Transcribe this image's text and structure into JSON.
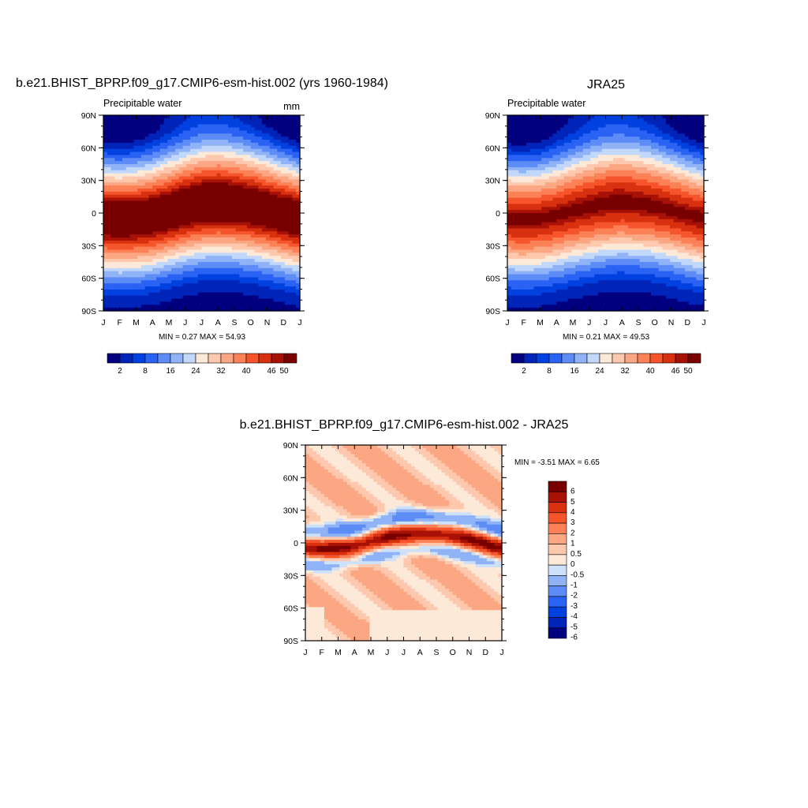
{
  "palette": [
    "#03007f",
    "#0024b8",
    "#0041e0",
    "#2a63f3",
    "#5d8cf6",
    "#90b3f7",
    "#c2d8fa",
    "#fde9d8",
    "#fdc8ad",
    "#fca783",
    "#fc8157",
    "#f6552c",
    "#d8310f",
    "#a81206",
    "#780000"
  ],
  "diff_palette": [
    "#03007f",
    "#0024b8",
    "#0041e0",
    "#2a63f3",
    "#5d8cf6",
    "#90b3f7",
    "#cde1fa",
    "#fde9d8",
    "#fdc8ad",
    "#fca783",
    "#fc8157",
    "#f6552c",
    "#d8310f",
    "#a81206",
    "#780000"
  ],
  "months": [
    "J",
    "F",
    "M",
    "A",
    "M",
    "J",
    "J",
    "A",
    "S",
    "O",
    "N",
    "D",
    "J"
  ],
  "lat_ticks": [
    "90N",
    "60N",
    "30N",
    "0",
    "30S",
    "60S",
    "90S"
  ],
  "cb_labels": [
    "2",
    "8",
    "16",
    "24",
    "32",
    "40",
    "46",
    "50"
  ],
  "diff_cb_labels": [
    "6",
    "5",
    "4",
    "3",
    "2",
    "1",
    "0.5",
    "0",
    "-0.5",
    "-1",
    "-2",
    "-3",
    "-4",
    "-5",
    "-6"
  ],
  "panel_left": {
    "title": "b.e21.BHIST_BPRP.f09_g17.CMIP6-esm-hist.002 (yrs 1960-1984)",
    "subtitle": "Precipitable water",
    "units": "mm",
    "minmax": "MIN =   0.27 MAX =  54.93"
  },
  "panel_right": {
    "title": "JRA25",
    "subtitle": "Precipitable water",
    "units": "",
    "minmax": "MIN =   0.21 MAX =  49.53"
  },
  "panel_diff": {
    "title": "b.e21.BHIST_BPRP.f09_g17.CMIP6-esm-hist.002 - JRA25",
    "minmax": "MIN =  -3.51 MAX =   6.65"
  },
  "chart_data": [
    {
      "type": "heatmap",
      "title": "b.e21.BHIST_BPRP.f09_g17.CMIP6-esm-hist.002 (yrs 1960-1984)",
      "variable": "Precipitable water",
      "units": "mm",
      "x": [
        "J",
        "F",
        "M",
        "A",
        "M",
        "J",
        "J",
        "A",
        "S",
        "O",
        "N",
        "D",
        "J"
      ],
      "y_range": [
        "90S",
        "90N"
      ],
      "min": 0.27,
      "max": 54.93,
      "contour_levels": [
        2,
        5,
        8,
        12,
        16,
        20,
        24,
        28,
        32,
        36,
        40,
        43,
        46,
        48,
        50
      ],
      "peak_latitude_by_month": [
        -5,
        -6,
        -5,
        -3,
        1,
        5,
        8,
        9,
        8,
        6,
        3,
        -1,
        -5
      ],
      "peak_value_mm": 54.93
    },
    {
      "type": "heatmap",
      "title": "JRA25",
      "variable": "Precipitable water",
      "x": [
        "J",
        "F",
        "M",
        "A",
        "M",
        "J",
        "J",
        "A",
        "S",
        "O",
        "N",
        "D",
        "J"
      ],
      "y_range": [
        "90S",
        "90N"
      ],
      "min": 0.21,
      "max": 49.53,
      "contour_levels": [
        2,
        5,
        8,
        12,
        16,
        20,
        24,
        28,
        32,
        36,
        40,
        43,
        46,
        48,
        50
      ],
      "peak_latitude_by_month": [
        -5,
        -6,
        -5,
        -2,
        2,
        5,
        8,
        9,
        8,
        6,
        3,
        -1,
        -5
      ],
      "peak_value_mm": 49.53
    },
    {
      "type": "heatmap",
      "title": "b.e21.BHIST_BPRP.f09_g17.CMIP6-esm-hist.002 - JRA25",
      "x": [
        "J",
        "F",
        "M",
        "A",
        "M",
        "J",
        "J",
        "A",
        "S",
        "O",
        "N",
        "D",
        "J"
      ],
      "y_range": [
        "90S",
        "90N"
      ],
      "min": -3.51,
      "max": 6.65,
      "contour_levels": [
        -6,
        -5,
        -4,
        -3,
        -2,
        -1,
        -0.5,
        0,
        0.5,
        1,
        2,
        3,
        4,
        5,
        6
      ]
    }
  ]
}
